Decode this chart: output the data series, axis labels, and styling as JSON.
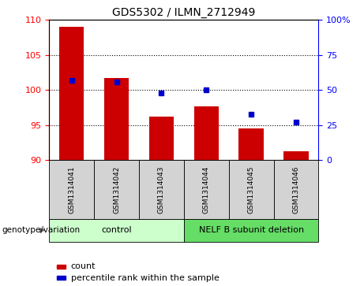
{
  "title": "GDS5302 / ILMN_2712949",
  "samples": [
    "GSM1314041",
    "GSM1314042",
    "GSM1314043",
    "GSM1314044",
    "GSM1314045",
    "GSM1314046"
  ],
  "count_values": [
    109.0,
    101.7,
    96.2,
    97.7,
    94.5,
    91.3
  ],
  "percentile_values": [
    57,
    56,
    48,
    50,
    33,
    27
  ],
  "ylim_left": [
    90,
    110
  ],
  "yticks_left": [
    90,
    95,
    100,
    105,
    110
  ],
  "ylim_right": [
    0,
    100
  ],
  "yticks_right": [
    0,
    25,
    50,
    75,
    100
  ],
  "bar_color": "#cc0000",
  "dot_color": "#0000cc",
  "bar_bottom": 90,
  "groups": [
    {
      "label": "control",
      "span": [
        0,
        2
      ],
      "color": "#ccffcc"
    },
    {
      "label": "NELF B subunit deletion",
      "span": [
        3,
        5
      ],
      "color": "#66dd66"
    }
  ],
  "group_label_prefix": "genotype/variation",
  "legend_count_label": "count",
  "legend_percentile_label": "percentile rank within the sample",
  "grid_dotted_ticks": [
    95,
    100,
    105
  ],
  "sample_box_color": "#d3d3d3",
  "right_tick_label_100": "100%"
}
